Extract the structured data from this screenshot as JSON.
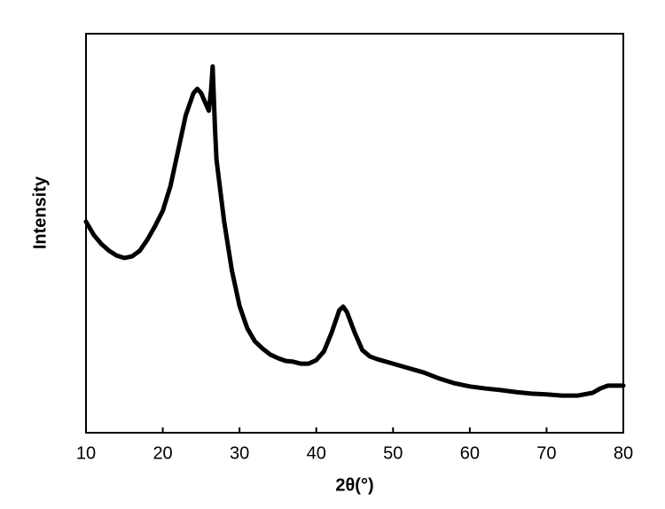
{
  "chart_data": {
    "type": "line",
    "x_label": "2θ(°)",
    "y_label": "Intensity",
    "x": [
      10,
      11,
      12,
      13,
      14,
      15,
      16,
      17,
      18,
      19,
      20,
      21,
      22,
      23,
      24,
      24.5,
      25,
      25.5,
      26,
      26.3,
      26.5,
      26.8,
      27,
      28,
      29,
      30,
      31,
      32,
      33,
      34,
      35,
      36,
      37,
      38,
      39,
      40,
      41,
      42,
      43,
      43.5,
      44,
      45,
      46,
      47,
      48,
      50,
      52,
      54,
      56,
      58,
      60,
      62,
      64,
      66,
      68,
      70,
      72,
      74,
      76,
      77,
      78,
      80
    ],
    "series": [
      {
        "color": "#000000",
        "values": [
          52.9,
          49.6,
          47.3,
          45.6,
          44.4,
          43.8,
          44.2,
          45.6,
          48.4,
          51.8,
          55.6,
          61.8,
          70.7,
          79.6,
          85.1,
          86.2,
          85.1,
          82.9,
          80.7,
          86,
          91.8,
          76.4,
          68.4,
          52.9,
          40.7,
          31.8,
          26.2,
          22.9,
          21.1,
          19.6,
          18.7,
          18,
          17.8,
          17.3,
          17.3,
          18.2,
          20.4,
          25.1,
          30.7,
          31.6,
          30.2,
          25.1,
          20.7,
          19.1,
          18.4,
          17.3,
          16.2,
          15.1,
          13.6,
          12.4,
          11.6,
          11.1,
          10.7,
          10.2,
          9.8,
          9.6,
          9.3,
          9.3,
          10,
          11.1,
          11.8,
          11.8
        ]
      }
    ],
    "xlim": [
      10,
      80
    ],
    "xticks": [
      10,
      20,
      30,
      40,
      50,
      60,
      70,
      80
    ],
    "ylim": [
      0,
      100
    ]
  }
}
